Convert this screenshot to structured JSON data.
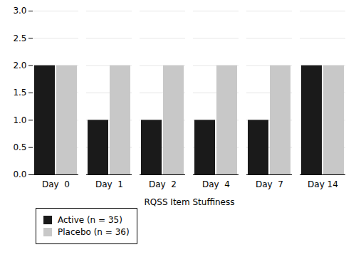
{
  "chart_data": {
    "type": "bar",
    "categories": [
      "Day  0",
      "Day  1",
      "Day  2",
      "Day  4",
      "Day  7",
      "Day 14"
    ],
    "series": [
      {
        "name": "Active (n = 35)",
        "color": "#1a1a1a",
        "values": [
          2.0,
          1.0,
          1.0,
          1.0,
          1.0,
          2.0
        ]
      },
      {
        "name": "Placebo (n = 36)",
        "color": "#c8c8c8",
        "values": [
          2.0,
          2.0,
          2.0,
          2.0,
          2.0,
          2.0
        ]
      }
    ],
    "xlabel": "RQSS Item Stuffiness",
    "ylim": [
      0.0,
      3.0
    ],
    "yticks": [
      {
        "value": 0.0,
        "label": "0.0"
      },
      0.5,
      {
        "value": 1.0,
        "label": "1.0"
      },
      1.5,
      {
        "value": 2.0,
        "label": "2.0"
      },
      2.5,
      {
        "value": 3.0,
        "label": "3.0"
      }
    ],
    "grid": true,
    "legend": "lower left"
  }
}
